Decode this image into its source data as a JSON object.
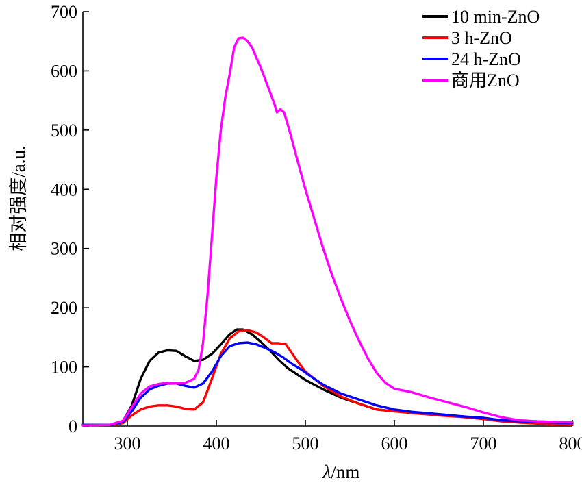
{
  "chart_data": {
    "type": "line",
    "title": "",
    "xlabel_prefix": "λ",
    "xlabel_suffix": "/nm",
    "ylabel": "相对强度/a.u.",
    "xlim": [
      250,
      800
    ],
    "ylim": [
      0,
      700
    ],
    "xticks": [
      300,
      400,
      500,
      600,
      700,
      800
    ],
    "yticks": [
      0,
      100,
      200,
      300,
      400,
      500,
      600,
      700
    ],
    "grid": false,
    "legend_position": "top-right",
    "series": [
      {
        "name": "10 min-ZnO",
        "color": "#000000",
        "points": [
          [
            250,
            2
          ],
          [
            280,
            2
          ],
          [
            295,
            8
          ],
          [
            305,
            35
          ],
          [
            315,
            80
          ],
          [
            325,
            110
          ],
          [
            335,
            124
          ],
          [
            345,
            128
          ],
          [
            355,
            127
          ],
          [
            365,
            118
          ],
          [
            375,
            110
          ],
          [
            385,
            112
          ],
          [
            395,
            122
          ],
          [
            405,
            138
          ],
          [
            415,
            155
          ],
          [
            423,
            163
          ],
          [
            430,
            163
          ],
          [
            440,
            155
          ],
          [
            450,
            142
          ],
          [
            460,
            128
          ],
          [
            470,
            112
          ],
          [
            480,
            98
          ],
          [
            490,
            88
          ],
          [
            500,
            78
          ],
          [
            520,
            62
          ],
          [
            540,
            48
          ],
          [
            560,
            38
          ],
          [
            580,
            28
          ],
          [
            600,
            25
          ],
          [
            620,
            23
          ],
          [
            650,
            20
          ],
          [
            680,
            15
          ],
          [
            700,
            12
          ],
          [
            720,
            10
          ],
          [
            750,
            8
          ],
          [
            780,
            7
          ],
          [
            800,
            6
          ]
        ]
      },
      {
        "name": "3 h-ZnO",
        "color": "#ff0000",
        "points": [
          [
            250,
            2
          ],
          [
            280,
            2
          ],
          [
            295,
            5
          ],
          [
            305,
            18
          ],
          [
            315,
            28
          ],
          [
            325,
            33
          ],
          [
            335,
            35
          ],
          [
            345,
            35
          ],
          [
            355,
            33
          ],
          [
            365,
            29
          ],
          [
            375,
            28
          ],
          [
            385,
            40
          ],
          [
            395,
            80
          ],
          [
            405,
            122
          ],
          [
            415,
            148
          ],
          [
            425,
            160
          ],
          [
            435,
            162
          ],
          [
            445,
            158
          ],
          [
            455,
            148
          ],
          [
            462,
            140
          ],
          [
            470,
            140
          ],
          [
            478,
            138
          ],
          [
            490,
            112
          ],
          [
            500,
            92
          ],
          [
            520,
            68
          ],
          [
            540,
            50
          ],
          [
            560,
            38
          ],
          [
            580,
            28
          ],
          [
            600,
            25
          ],
          [
            620,
            22
          ],
          [
            650,
            18
          ],
          [
            680,
            15
          ],
          [
            700,
            12
          ],
          [
            720,
            8
          ],
          [
            750,
            5
          ],
          [
            780,
            3
          ],
          [
            800,
            2
          ]
        ]
      },
      {
        "name": "24 h-ZnO",
        "color": "#0000ff",
        "points": [
          [
            250,
            2
          ],
          [
            280,
            2
          ],
          [
            295,
            7
          ],
          [
            305,
            25
          ],
          [
            315,
            48
          ],
          [
            325,
            62
          ],
          [
            335,
            68
          ],
          [
            345,
            72
          ],
          [
            355,
            72
          ],
          [
            365,
            68
          ],
          [
            375,
            65
          ],
          [
            385,
            72
          ],
          [
            395,
            92
          ],
          [
            405,
            118
          ],
          [
            415,
            135
          ],
          [
            425,
            140
          ],
          [
            435,
            141
          ],
          [
            445,
            138
          ],
          [
            455,
            132
          ],
          [
            465,
            125
          ],
          [
            475,
            116
          ],
          [
            485,
            105
          ],
          [
            495,
            96
          ],
          [
            505,
            85
          ],
          [
            520,
            70
          ],
          [
            540,
            55
          ],
          [
            560,
            45
          ],
          [
            580,
            35
          ],
          [
            600,
            28
          ],
          [
            620,
            24
          ],
          [
            650,
            20
          ],
          [
            680,
            16
          ],
          [
            700,
            14
          ],
          [
            720,
            10
          ],
          [
            750,
            7
          ],
          [
            780,
            6
          ],
          [
            800,
            5
          ]
        ]
      },
      {
        "name": "商用ZnO",
        "color": "#ff00ff",
        "points": [
          [
            250,
            1
          ],
          [
            280,
            2
          ],
          [
            295,
            9
          ],
          [
            305,
            32
          ],
          [
            315,
            55
          ],
          [
            325,
            67
          ],
          [
            335,
            71
          ],
          [
            345,
            73
          ],
          [
            355,
            72
          ],
          [
            365,
            73
          ],
          [
            375,
            80
          ],
          [
            380,
            95
          ],
          [
            385,
            140
          ],
          [
            390,
            220
          ],
          [
            395,
            320
          ],
          [
            400,
            420
          ],
          [
            405,
            500
          ],
          [
            410,
            555
          ],
          [
            415,
            595
          ],
          [
            420,
            640
          ],
          [
            425,
            655
          ],
          [
            430,
            656
          ],
          [
            435,
            650
          ],
          [
            440,
            640
          ],
          [
            445,
            622
          ],
          [
            450,
            605
          ],
          [
            455,
            585
          ],
          [
            460,
            565
          ],
          [
            465,
            545
          ],
          [
            468,
            530
          ],
          [
            472,
            535
          ],
          [
            476,
            530
          ],
          [
            482,
            500
          ],
          [
            490,
            455
          ],
          [
            500,
            400
          ],
          [
            510,
            350
          ],
          [
            520,
            300
          ],
          [
            530,
            255
          ],
          [
            540,
            215
          ],
          [
            550,
            178
          ],
          [
            560,
            145
          ],
          [
            570,
            115
          ],
          [
            580,
            90
          ],
          [
            590,
            73
          ],
          [
            600,
            63
          ],
          [
            620,
            57
          ],
          [
            640,
            48
          ],
          [
            660,
            40
          ],
          [
            680,
            32
          ],
          [
            700,
            23
          ],
          [
            720,
            15
          ],
          [
            740,
            10
          ],
          [
            760,
            8
          ],
          [
            780,
            7
          ],
          [
            800,
            6
          ]
        ]
      }
    ]
  }
}
